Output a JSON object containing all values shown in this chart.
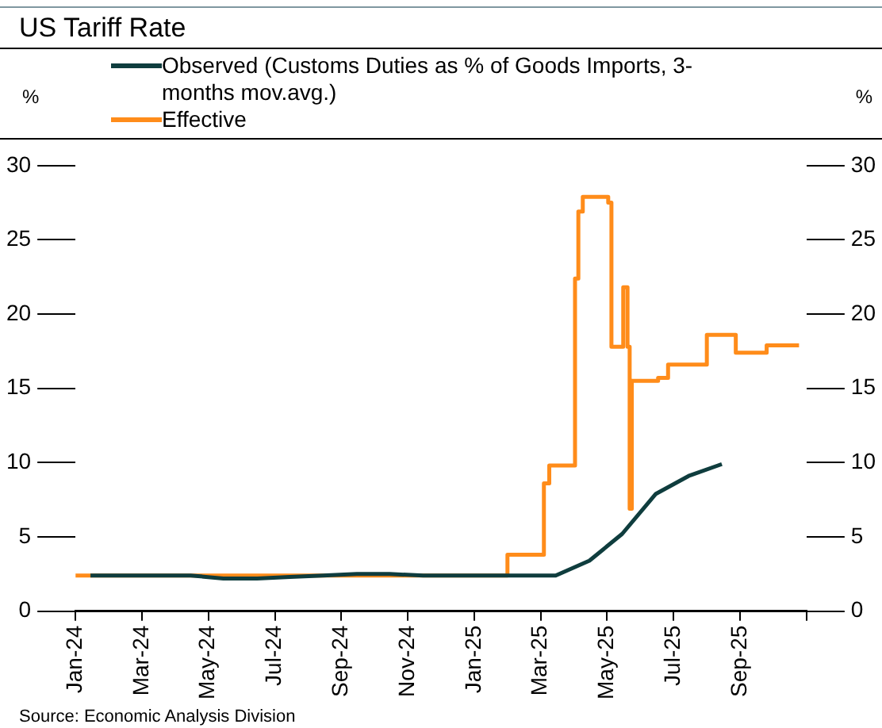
{
  "chart_data": {
    "type": "line",
    "title": "US Tariff Rate",
    "ylabel": "%",
    "y2label": "%",
    "xlim": [
      "2024-01-01",
      "2025-11-01"
    ],
    "xticks": [
      {
        "value": "2024-01-01",
        "label": "Jan-24"
      },
      {
        "value": "2024-03-01",
        "label": "Mar-24"
      },
      {
        "value": "2024-05-01",
        "label": "May-24"
      },
      {
        "value": "2024-07-01",
        "label": "Jul-24"
      },
      {
        "value": "2024-09-01",
        "label": "Sep-24"
      },
      {
        "value": "2024-11-01",
        "label": "Nov-24"
      },
      {
        "value": "2025-01-01",
        "label": "Jan-25"
      },
      {
        "value": "2025-03-01",
        "label": "Mar-25"
      },
      {
        "value": "2025-05-01",
        "label": "May-25"
      },
      {
        "value": "2025-07-01",
        "label": "Jul-25"
      },
      {
        "value": "2025-09-01",
        "label": "Sep-25"
      },
      {
        "value": "2025-11-01",
        "label": null
      }
    ],
    "ylim": [
      0,
      30
    ],
    "yticks": [
      0,
      5,
      10,
      15,
      20,
      25,
      30
    ],
    "y2lim": [
      0,
      30
    ],
    "y2ticks": [
      0,
      5,
      10,
      15,
      20,
      25,
      30
    ],
    "grid": false,
    "legend": "top left",
    "marker": "none",
    "line_style": "solid",
    "series": [
      {
        "name": "Observed (Customs Duties as % of Goods Imports, 3-months mov.avg.)",
        "color": "#0f3d3e",
        "x": [
          "2024-01-15",
          "2024-02-15",
          "2024-03-15",
          "2024-04-15",
          "2024-05-15",
          "2024-06-15",
          "2024-07-15",
          "2024-08-15",
          "2024-09-15",
          "2024-10-15",
          "2024-11-15",
          "2024-12-15",
          "2025-01-15",
          "2025-02-15",
          "2025-03-15",
          "2025-04-15",
          "2025-05-15",
          "2025-06-15",
          "2025-07-15",
          "2025-08-15"
        ],
        "values": [
          2.4,
          2.4,
          2.4,
          2.4,
          2.2,
          2.2,
          2.3,
          2.4,
          2.5,
          2.5,
          2.4,
          2.4,
          2.4,
          2.4,
          2.4,
          3.4,
          5.2,
          7.9,
          9.1,
          9.9
        ]
      },
      {
        "name": "Effective",
        "type": "step",
        "color": "#ff8c1a",
        "x": [
          "2024-01-01",
          "2025-02-01",
          "2025-03-04",
          "2025-03-09",
          "2025-04-02",
          "2025-04-05",
          "2025-04-09",
          "2025-05-02",
          "2025-05-05",
          "2025-05-14",
          "2025-05-16",
          "2025-05-20",
          "2025-05-22",
          "2025-05-24",
          "2025-06-17",
          "2025-06-26",
          "2025-08-01",
          "2025-08-28",
          "2025-09-25",
          "2025-10-25"
        ],
        "values": [
          2.4,
          3.8,
          8.6,
          9.8,
          22.4,
          26.9,
          27.9,
          27.5,
          17.8,
          17.8,
          21.8,
          17.8,
          6.9,
          15.5,
          15.7,
          16.6,
          18.6,
          17.4,
          17.9,
          17.9
        ]
      }
    ],
    "annotations": [
      "Source: Economic Analysis Division"
    ]
  }
}
